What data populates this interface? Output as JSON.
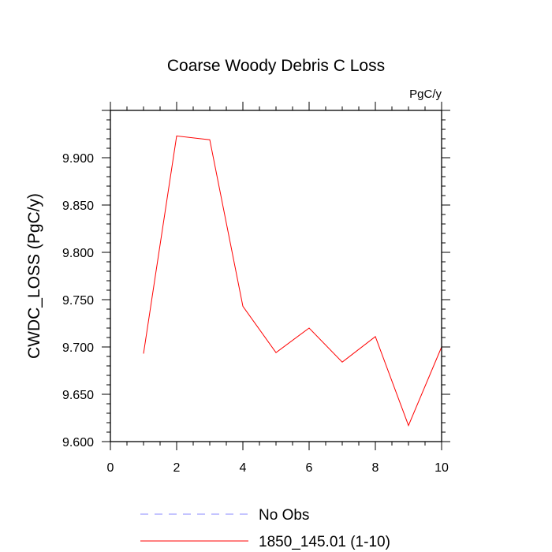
{
  "chart_data": {
    "type": "line",
    "title": "Coarse Woody Debris C Loss",
    "units_label": "PgC/y",
    "xlabel": "",
    "ylabel": "CWDC_LOSS  (PgC/y)",
    "xlim": [
      0,
      10
    ],
    "ylim": [
      9.6,
      9.95
    ],
    "x_ticks": [
      "0",
      "2",
      "4",
      "6",
      "8",
      "10"
    ],
    "y_ticks": [
      "9.600",
      "9.650",
      "9.700",
      "9.750",
      "9.800",
      "9.850",
      "9.900"
    ],
    "grid": false,
    "legend_position": "bottom",
    "series": [
      {
        "name": "1850_145.01 (1-10)",
        "color": "#ff0000",
        "style": "solid",
        "x": [
          1,
          2,
          3,
          4,
          5,
          6,
          7,
          8,
          9,
          10
        ],
        "y": [
          9.693,
          9.923,
          9.919,
          9.743,
          9.694,
          9.72,
          9.684,
          9.711,
          9.617,
          9.7
        ]
      }
    ],
    "legend": [
      {
        "label": "No Obs",
        "color": "#8888ff",
        "style": "dashed"
      },
      {
        "label": "1850_145.01 (1-10)",
        "color": "#ff0000",
        "style": "solid"
      }
    ]
  }
}
